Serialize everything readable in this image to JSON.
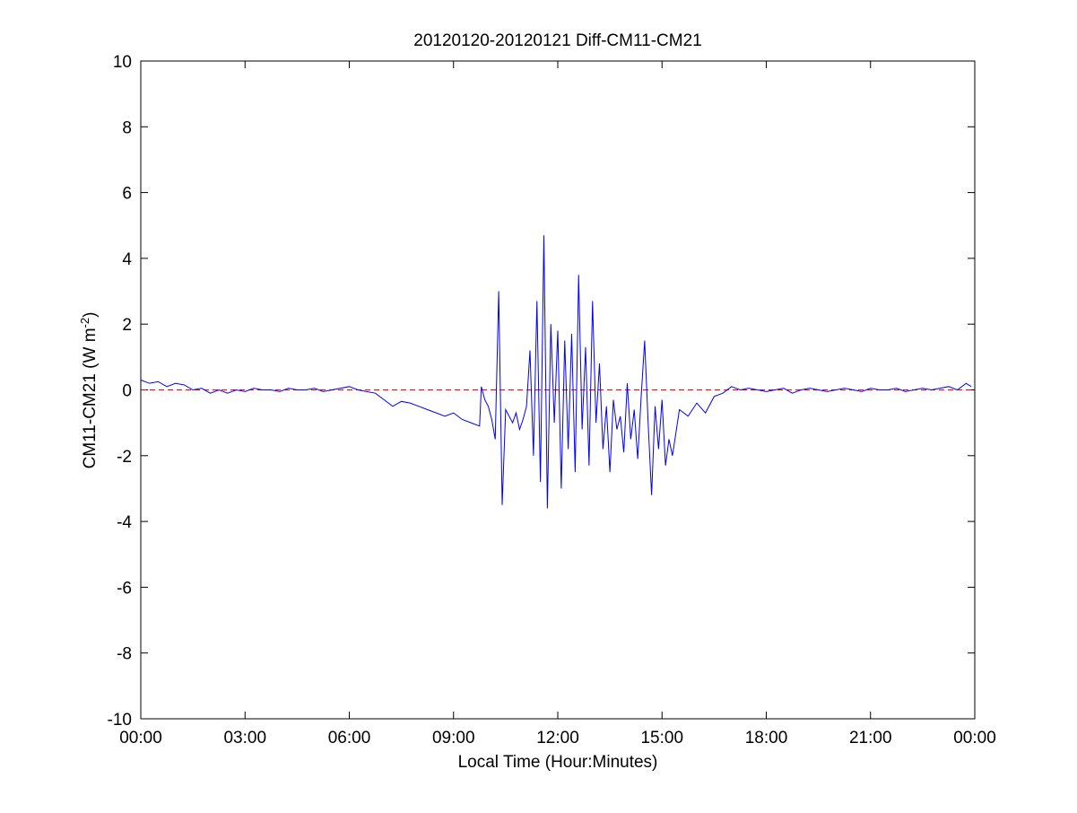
{
  "chart_data": {
    "type": "line",
    "title": "20120120-20120121 Diff-CM11-CM21",
    "x_label": "Local Time (Hour:Minutes)",
    "y_label": [
      "CM11-CM21 (W m",
      "-2",
      ")"
    ],
    "xlim": [
      0,
      24
    ],
    "ylim": [
      -10,
      10
    ],
    "xticks": [
      {
        "value": 0,
        "label": "00:00"
      },
      {
        "value": 3,
        "label": "03:00"
      },
      {
        "value": 6,
        "label": "06:00"
      },
      {
        "value": 9,
        "label": "09:00"
      },
      {
        "value": 12,
        "label": "12:00"
      },
      {
        "value": 15,
        "label": "15:00"
      },
      {
        "value": 18,
        "label": "18:00"
      },
      {
        "value": 21,
        "label": "21:00"
      },
      {
        "value": 24,
        "label": "00:00"
      }
    ],
    "yticks": [
      -10,
      -8,
      -6,
      -4,
      -2,
      0,
      2,
      4,
      6,
      8,
      10
    ],
    "grid": false,
    "reference_line": {
      "value": 0,
      "color": "#ff0000"
    },
    "x": [
      0,
      0.25,
      0.5,
      0.75,
      1,
      1.25,
      1.5,
      1.75,
      2,
      2.25,
      2.5,
      2.75,
      3,
      3.25,
      3.5,
      3.75,
      4,
      4.25,
      4.5,
      4.75,
      5,
      5.25,
      5.5,
      5.75,
      6,
      6.25,
      6.5,
      6.75,
      7,
      7.25,
      7.5,
      7.75,
      8,
      8.25,
      8.5,
      8.75,
      9,
      9.25,
      9.5,
      9.75,
      9.8,
      9.9,
      10,
      10.1,
      10.2,
      10.3,
      10.4,
      10.5,
      10.6,
      10.7,
      10.8,
      10.9,
      11,
      11.1,
      11.2,
      11.3,
      11.4,
      11.5,
      11.6,
      11.7,
      11.8,
      11.9,
      12,
      12.1,
      12.2,
      12.3,
      12.4,
      12.5,
      12.6,
      12.7,
      12.8,
      12.9,
      13,
      13.1,
      13.2,
      13.3,
      13.4,
      13.5,
      13.6,
      13.7,
      13.8,
      13.9,
      14,
      14.1,
      14.2,
      14.3,
      14.4,
      14.5,
      14.6,
      14.7,
      14.8,
      14.9,
      15,
      15.1,
      15.2,
      15.3,
      15.5,
      15.75,
      16,
      16.25,
      16.5,
      16.75,
      17,
      17.25,
      17.5,
      17.75,
      18,
      18.25,
      18.5,
      18.75,
      19,
      19.25,
      19.5,
      19.75,
      20,
      20.25,
      20.5,
      20.75,
      21,
      21.25,
      21.5,
      21.75,
      22,
      22.25,
      22.5,
      22.75,
      23,
      23.25,
      23.5,
      23.75,
      23.9
    ],
    "series": [
      {
        "color": "#0000ff",
        "values": [
          0.3,
          0.2,
          0.25,
          0.1,
          0.2,
          0.15,
          0.0,
          0.05,
          -0.1,
          0.0,
          -0.1,
          0.0,
          -0.05,
          0.05,
          0.0,
          0.0,
          -0.05,
          0.05,
          0.0,
          0.0,
          0.05,
          -0.05,
          0.0,
          0.05,
          0.1,
          0.0,
          -0.05,
          -0.1,
          -0.3,
          -0.5,
          -0.35,
          -0.4,
          -0.5,
          -0.6,
          -0.7,
          -0.8,
          -0.7,
          -0.9,
          -1.0,
          -1.1,
          0.1,
          -0.3,
          -0.5,
          -0.9,
          -1.5,
          3.0,
          -3.5,
          -0.6,
          -0.8,
          -1.0,
          -0.7,
          -1.2,
          -0.9,
          -0.5,
          1.2,
          -2.0,
          2.7,
          -2.8,
          4.7,
          -3.6,
          2.0,
          -1.0,
          1.8,
          -3.0,
          1.5,
          -1.8,
          1.7,
          -2.5,
          3.5,
          -1.2,
          1.3,
          -2.3,
          2.7,
          -1.0,
          0.8,
          -1.8,
          -0.5,
          -2.5,
          -0.3,
          -1.2,
          -0.8,
          -1.9,
          0.2,
          -1.5,
          -0.6,
          -2.1,
          -0.2,
          1.5,
          -1.0,
          -3.2,
          -0.5,
          -1.8,
          -0.3,
          -2.3,
          -1.5,
          -2.0,
          -0.6,
          -0.8,
          -0.4,
          -0.7,
          -0.2,
          -0.1,
          0.1,
          0.0,
          0.05,
          0.0,
          -0.05,
          0.0,
          0.05,
          -0.1,
          0.0,
          0.05,
          0.0,
          -0.05,
          0.0,
          0.05,
          0.0,
          -0.05,
          0.05,
          0.0,
          0.0,
          0.05,
          -0.05,
          0.0,
          0.05,
          0.0,
          0.05,
          0.1,
          0.0,
          0.2,
          0.1
        ]
      }
    ]
  }
}
